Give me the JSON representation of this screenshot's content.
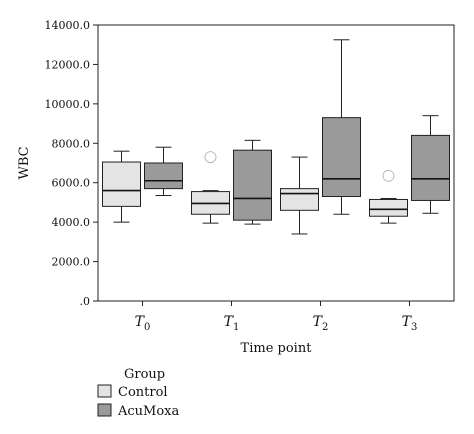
{
  "chart_data": {
    "type": "box",
    "ylabel": "WBC",
    "xlabel": "Time point",
    "ylim": [
      0,
      14000
    ],
    "yticks": [
      0,
      2000,
      4000,
      6000,
      8000,
      10000,
      12000,
      14000
    ],
    "ytick_labels": [
      ".0",
      "2000.0",
      "4000.0",
      "6000.0",
      "8000.0",
      "10000.0",
      "12000.0",
      "14000.0"
    ],
    "categories": [
      {
        "main": "T",
        "sub": "0"
      },
      {
        "main": "T",
        "sub": "1"
      },
      {
        "main": "T",
        "sub": "2"
      },
      {
        "main": "T",
        "sub": "3"
      }
    ],
    "legend": {
      "title": "Group",
      "placement": "bottom-left"
    },
    "series": [
      {
        "name": "Control",
        "color": "#e4e4e4",
        "boxes": [
          {
            "min": 4000,
            "q1": 4800,
            "median": 5600,
            "q3": 7050,
            "max": 7600
          },
          {
            "min": 3950,
            "q1": 4400,
            "median": 4950,
            "q3": 5550,
            "max": 5600
          },
          {
            "min": 3400,
            "q1": 4600,
            "median": 5450,
            "q3": 5700,
            "max": 7300
          },
          {
            "min": 3950,
            "q1": 4300,
            "median": 4650,
            "q3": 5150,
            "max": 5200
          }
        ],
        "outliers": [
          [],
          [
            7300
          ],
          [],
          [
            6350
          ]
        ]
      },
      {
        "name": "AcuMoxa",
        "color": "#9a9a9a",
        "boxes": [
          {
            "min": 5350,
            "q1": 5700,
            "median": 6100,
            "q3": 7000,
            "max": 7800
          },
          {
            "min": 3900,
            "q1": 4100,
            "median": 5200,
            "q3": 7650,
            "max": 8150
          },
          {
            "min": 4400,
            "q1": 5300,
            "median": 6200,
            "q3": 9300,
            "max": 13250
          },
          {
            "min": 4450,
            "q1": 5100,
            "median": 6200,
            "q3": 8400,
            "max": 9400
          }
        ],
        "outliers": [
          [],
          [],
          [],
          []
        ]
      }
    ]
  }
}
